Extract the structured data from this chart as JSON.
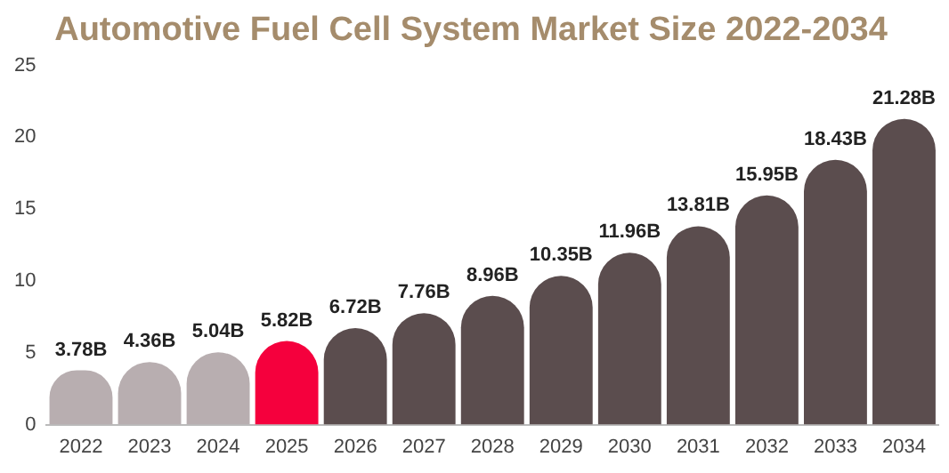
{
  "chart_data": {
    "type": "bar",
    "title": "Automotive Fuel Cell System Market Size 2022-2034",
    "categories": [
      "2022",
      "2023",
      "2024",
      "2025",
      "2026",
      "2027",
      "2028",
      "2029",
      "2030",
      "2031",
      "2032",
      "2033",
      "2034"
    ],
    "values": [
      3.78,
      4.36,
      5.04,
      5.82,
      6.72,
      7.76,
      8.96,
      10.35,
      11.96,
      13.81,
      15.95,
      18.43,
      21.28
    ],
    "colors": [
      "#b8aeb0",
      "#b8aeb0",
      "#b8aeb0",
      "#f5003d",
      "#5b4d4e",
      "#5b4d4e",
      "#5b4d4e",
      "#5b4d4e",
      "#5b4d4e",
      "#5b4d4e",
      "#5b4d4e",
      "#5b4d4e",
      "#5b4d4e"
    ],
    "value_labels": [
      "3.78B",
      "4.36B",
      "5.04B",
      "5.82B",
      "6.72B",
      "7.76B",
      "8.96B",
      "10.35B",
      "11.96B",
      "13.81B",
      "15.95B",
      "18.43B",
      "21.28B"
    ],
    "ylim": [
      0,
      25
    ],
    "yticks": [
      0,
      5,
      10,
      15,
      20,
      25
    ],
    "grid": false,
    "legend": false
  }
}
